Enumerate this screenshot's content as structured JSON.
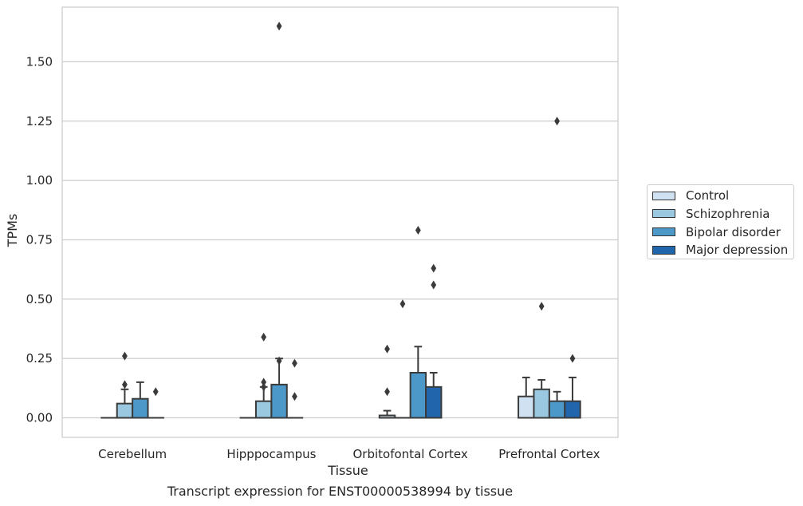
{
  "chart_data": {
    "type": "box",
    "title": "",
    "caption": "Transcript expression for ENST00000538994 by tissue",
    "xlabel": "Tissue",
    "ylabel": "TPMs",
    "ylim": [
      -0.08,
      1.73
    ],
    "yticks": [
      "0.00",
      "0.25",
      "0.50",
      "0.75",
      "1.00",
      "1.25",
      "1.50"
    ],
    "grid": "horizontal",
    "legend_position": "right",
    "categories": [
      "Cerebellum",
      "Hipppocampus",
      "Orbitofontal Cortex",
      "Prefrontal Cortex"
    ],
    "series": [
      {
        "name": "Control",
        "color": "#d0e1f2",
        "boxes": [
          {
            "q1": 0,
            "median": 0,
            "q3": 0,
            "whisker_low": 0,
            "whisker_high": 0,
            "outliers": []
          },
          {
            "q1": 0,
            "median": 0,
            "q3": 0,
            "whisker_low": 0,
            "whisker_high": 0,
            "outliers": []
          },
          {
            "q1": 0,
            "median": 0,
            "q3": 0.01,
            "whisker_low": 0,
            "whisker_high": 0.03,
            "outliers": [
              0.11,
              0.29
            ]
          },
          {
            "q1": 0,
            "median": 0,
            "q3": 0.09,
            "whisker_low": 0,
            "whisker_high": 0.17,
            "outliers": []
          }
        ]
      },
      {
        "name": "Schizophrenia",
        "color": "#9ac8e0",
        "boxes": [
          {
            "q1": 0,
            "median": 0,
            "q3": 0.06,
            "whisker_low": 0,
            "whisker_high": 0.12,
            "outliers": [
              0.14,
              0.26
            ]
          },
          {
            "q1": 0,
            "median": 0,
            "q3": 0.07,
            "whisker_low": 0,
            "whisker_high": 0.13,
            "outliers": [
              0.13,
              0.15,
              0.34
            ]
          },
          {
            "q1": 0,
            "median": 0,
            "q3": 0,
            "whisker_low": 0,
            "whisker_high": 0,
            "outliers": [
              0.48
            ]
          },
          {
            "q1": 0,
            "median": 0,
            "q3": 0.12,
            "whisker_low": 0,
            "whisker_high": 0.16,
            "outliers": [
              0.47
            ]
          }
        ]
      },
      {
        "name": "Bipolar disorder",
        "color": "#4b98c9",
        "boxes": [
          {
            "q1": 0,
            "median": 0,
            "q3": 0.08,
            "whisker_low": 0,
            "whisker_high": 0.15,
            "outliers": []
          },
          {
            "q1": 0,
            "median": 0,
            "q3": 0.14,
            "whisker_low": 0,
            "whisker_high": 0.25,
            "outliers": [
              0.24,
              1.65
            ]
          },
          {
            "q1": 0,
            "median": 0,
            "q3": 0.19,
            "whisker_low": 0,
            "whisker_high": 0.3,
            "outliers": [
              0.79
            ]
          },
          {
            "q1": 0,
            "median": 0,
            "q3": 0.07,
            "whisker_low": 0,
            "whisker_high": 0.11,
            "outliers": [
              1.25
            ]
          }
        ]
      },
      {
        "name": "Major depression",
        "color": "#2166ac",
        "boxes": [
          {
            "q1": 0,
            "median": 0,
            "q3": 0,
            "whisker_low": 0,
            "whisker_high": 0,
            "outliers": [
              0.11
            ]
          },
          {
            "q1": 0,
            "median": 0,
            "q3": 0,
            "whisker_low": 0,
            "whisker_high": 0,
            "outliers": [
              0.09,
              0.23
            ]
          },
          {
            "q1": 0,
            "median": 0,
            "q3": 0.13,
            "whisker_low": 0,
            "whisker_high": 0.19,
            "outliers": [
              0.56,
              0.63
            ]
          },
          {
            "q1": 0,
            "median": 0,
            "q3": 0.07,
            "whisker_low": 0,
            "whisker_high": 0.17,
            "outliers": [
              0.25
            ]
          }
        ]
      }
    ]
  }
}
